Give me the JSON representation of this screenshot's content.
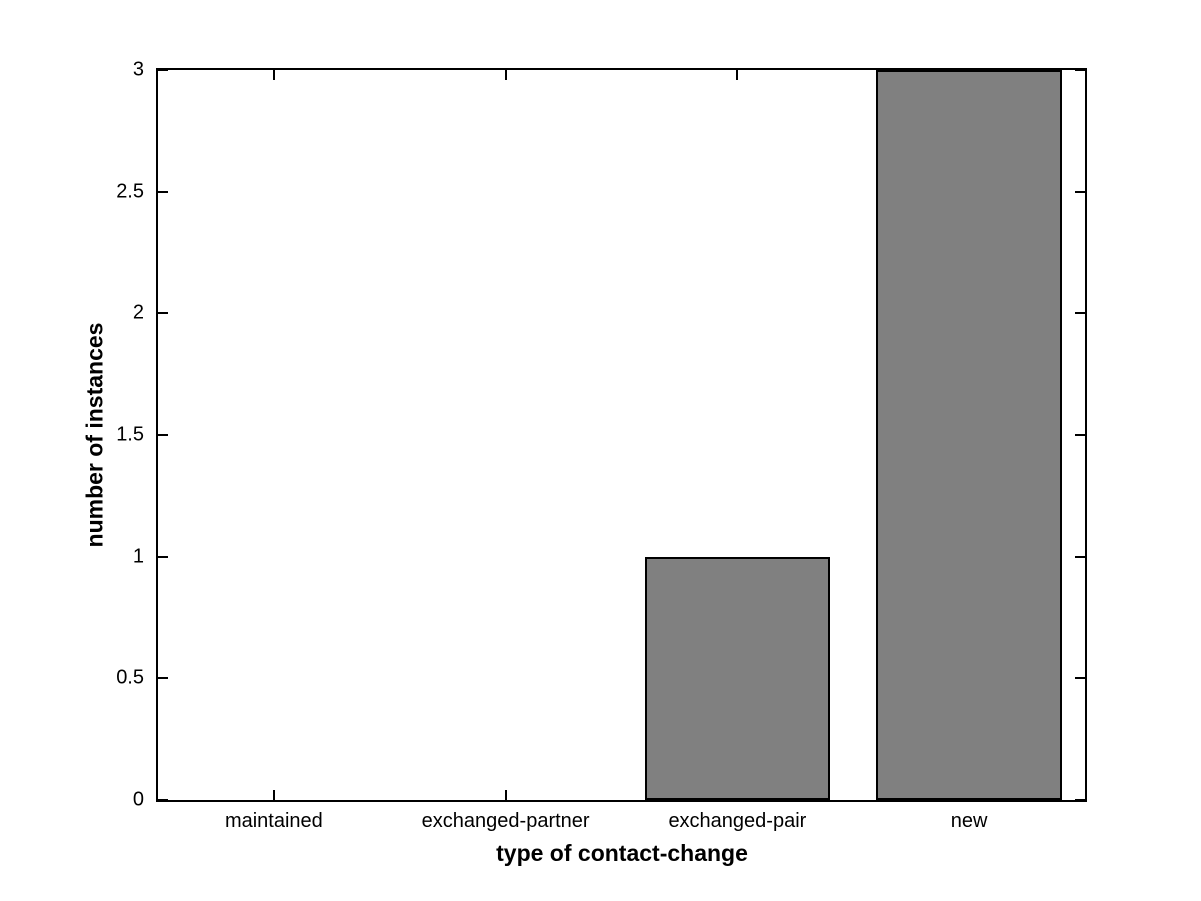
{
  "chart_data": {
    "type": "bar",
    "categories": [
      "maintained",
      "exchanged-partner",
      "exchanged-pair",
      "new"
    ],
    "values": [
      0,
      0,
      1,
      3
    ],
    "title": "",
    "xlabel": "type of contact-change",
    "ylabel": "number of instances",
    "yticks": [
      0,
      0.5,
      1,
      1.5,
      2,
      2.5,
      3
    ],
    "ytick_labels": [
      "0",
      "0.5",
      "1",
      "1.5",
      "2",
      "2.5",
      "3"
    ],
    "ylim": [
      0,
      3
    ],
    "bar_width_fraction": 0.8,
    "bar_color": "#808080",
    "bar_edge_color": "#000000",
    "axis_color": "#000000",
    "background_color": "#ffffff",
    "grid": false,
    "legend": null
  }
}
